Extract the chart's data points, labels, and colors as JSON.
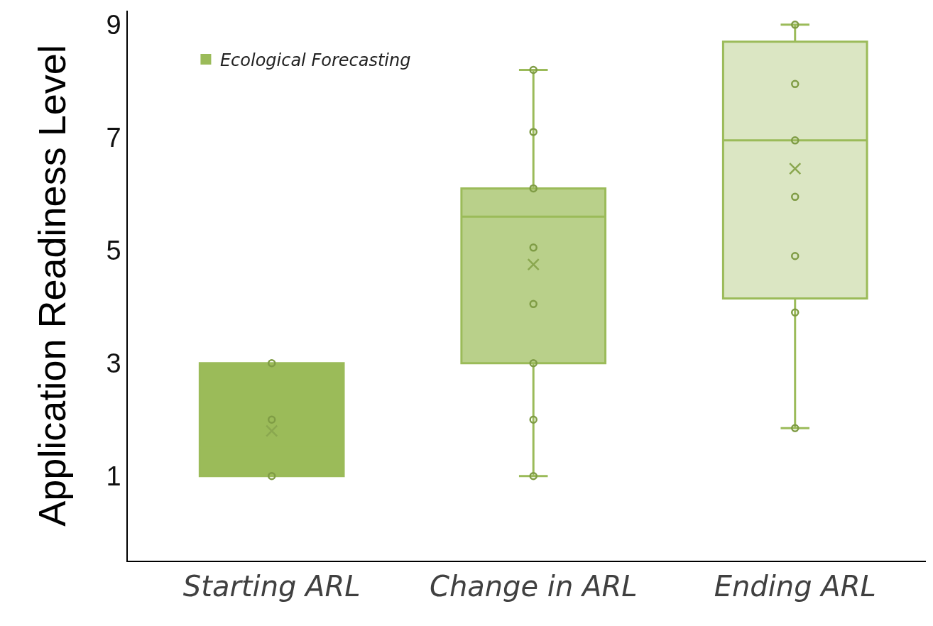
{
  "chart_data": {
    "type": "box",
    "ylabel": "Application Readiness Level",
    "categories": [
      "Starting ARL",
      "Change in ARL",
      "Ending ARL"
    ],
    "series": [
      {
        "name": "Ecological Forecasting",
        "color": "#9bbb59",
        "colors": [
          "#9bbb59",
          "#b9d08a",
          "#dbe6c3"
        ],
        "boxes": [
          {
            "low": 1,
            "q1": 1,
            "median": 1.5,
            "q3": 3,
            "high": 3,
            "mean": 1.8
          },
          {
            "low": 1,
            "q1": 3,
            "median": 5.6,
            "q3": 6.1,
            "high": 8.2,
            "mean": 4.75
          },
          {
            "low": 1.85,
            "q1": 4.15,
            "median": 6.95,
            "q3": 8.7,
            "high": 9,
            "mean": 6.45
          }
        ]
      },
      {
        "type": "scatter",
        "color": "#7f9c45",
        "marker": "circle",
        "x": [
          "Starting ARL",
          "Starting ARL",
          "Starting ARL",
          "Change in ARL",
          "Change in ARL",
          "Change in ARL",
          "Change in ARL",
          "Change in ARL",
          "Change in ARL",
          "Change in ARL",
          "Change in ARL",
          "Ending ARL",
          "Ending ARL",
          "Ending ARL",
          "Ending ARL",
          "Ending ARL",
          "Ending ARL",
          "Ending ARL"
        ],
        "values": [
          1,
          2,
          3,
          1,
          2,
          3,
          4.05,
          5.05,
          6.1,
          7.1,
          8.2,
          1.85,
          3.9,
          4.9,
          5.95,
          6.95,
          7.95,
          9
        ]
      }
    ],
    "ylim": [
      -0.5,
      9.25
    ],
    "yticks": [
      1,
      3,
      5,
      7,
      9
    ],
    "grid": false,
    "legend": "top left"
  }
}
